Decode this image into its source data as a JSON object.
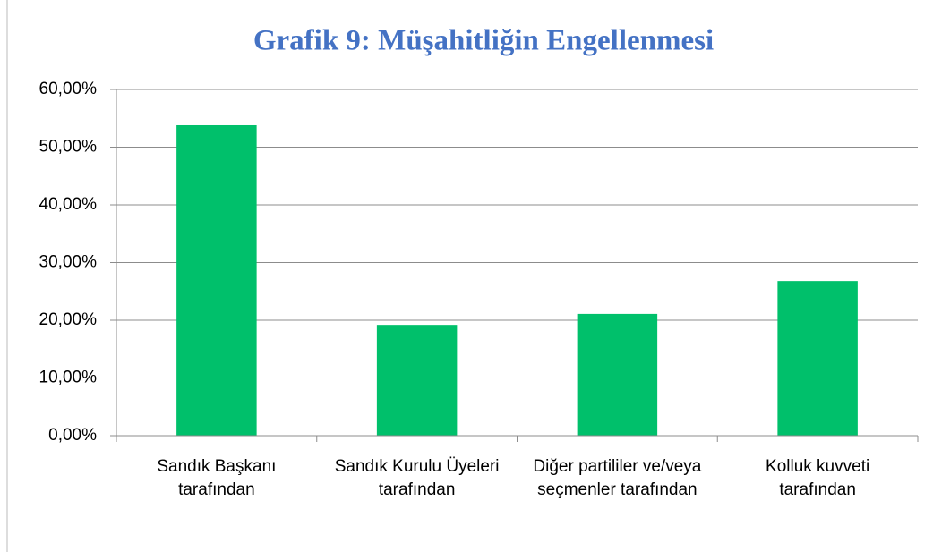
{
  "chart_data": {
    "type": "bar",
    "title": "Grafik 9: Müşahitliğin Engellenmesi",
    "categories": [
      "Sandık Başkanı tarafından",
      "Sandık Kurulu Üyeleri tarafından",
      "Diğer partililer ve/veya seçmenler tarafından",
      "Kolluk kuvveti tarafından"
    ],
    "values": [
      53.8,
      19.2,
      21.1,
      26.8
    ],
    "color": "#00c06b",
    "ylim": [
      0,
      60
    ],
    "yticks": [
      {
        "value": 0,
        "label": "0,00%"
      },
      {
        "value": 10,
        "label": "10,00%"
      },
      {
        "value": 20,
        "label": "20,00%"
      },
      {
        "value": 30,
        "label": "30,00%"
      },
      {
        "value": 40,
        "label": "40,00%"
      },
      {
        "value": 50,
        "label": "50,00%"
      },
      {
        "value": 60,
        "label": "60,00%"
      }
    ],
    "grid": true
  }
}
